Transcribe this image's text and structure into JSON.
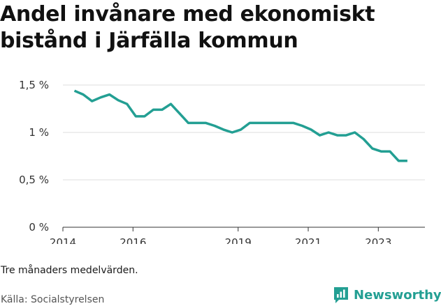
{
  "chart_data": {
    "type": "line",
    "title": "Andel invånare med ekonomiskt bistånd i Järfälla kommun",
    "x_tick_labels": [
      "2014",
      "2016",
      "2019",
      "2021",
      "2023"
    ],
    "x_tick_positions": [
      2014.0,
      2016.0,
      2019.0,
      2021.0,
      2023.0
    ],
    "xlim": [
      2014.0,
      2024.33
    ],
    "y_tick_labels": [
      "0 %",
      "0,5 %",
      "1 %",
      "1,5 %"
    ],
    "y_tick_values": [
      0,
      0.5,
      1.0,
      1.5
    ],
    "ylim": [
      0,
      1.5
    ],
    "grid": true,
    "series_color": "#239f93",
    "series": [
      {
        "x": [
          2014.33,
          2014.58,
          2014.83,
          2015.08,
          2015.33,
          2015.58,
          2015.83,
          2016.08,
          2016.33,
          2016.58,
          2016.83,
          2017.08,
          2017.33,
          2017.58,
          2017.83,
          2018.08,
          2018.33,
          2018.58,
          2018.83,
          2019.08,
          2019.33,
          2019.58,
          2019.83,
          2020.08,
          2020.33,
          2020.58,
          2020.83,
          2021.08,
          2021.33,
          2021.58,
          2021.83,
          2022.08,
          2022.33,
          2022.58,
          2022.83,
          2023.08,
          2023.33,
          2023.58,
          2023.83
        ],
        "values": [
          1.44,
          1.4,
          1.33,
          1.37,
          1.4,
          1.34,
          1.3,
          1.17,
          1.17,
          1.24,
          1.24,
          1.3,
          1.2,
          1.1,
          1.1,
          1.1,
          1.07,
          1.03,
          1.0,
          1.03,
          1.1,
          1.1,
          1.1,
          1.1,
          1.1,
          1.1,
          1.07,
          1.03,
          0.97,
          1.0,
          0.97,
          0.97,
          1.0,
          0.93,
          0.83,
          0.8,
          0.8,
          0.7,
          0.7
        ]
      }
    ]
  },
  "footer": {
    "note": "Tre månaders medelvärden.",
    "source": "Källa: Socialstyrelsen",
    "brand": "Newsworthy"
  }
}
